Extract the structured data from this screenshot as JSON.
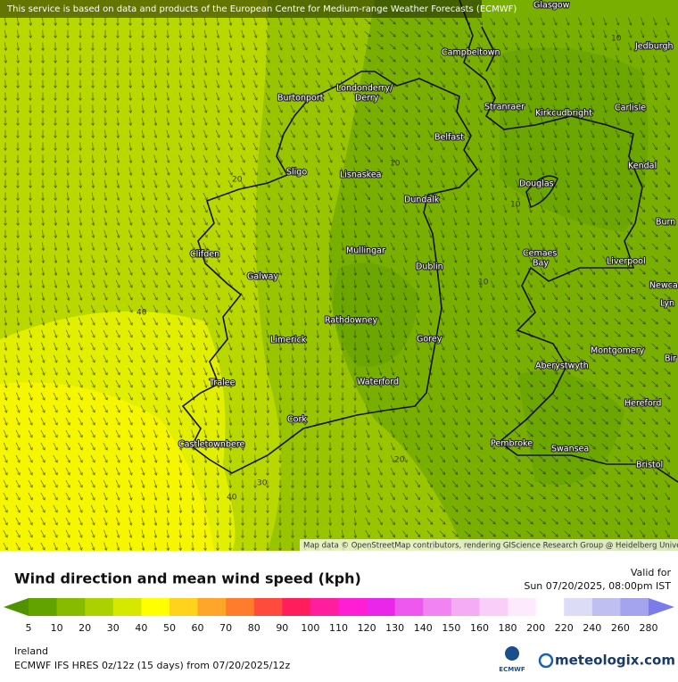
{
  "header": {
    "notice": "This service is based on data and products of the European Centre for Medium-range Weather Forecasts (ECMWF)"
  },
  "map": {
    "places": [
      "Glasgow",
      "Jedburgh",
      "Campbeltown",
      "Londonderry/",
      "Derry",
      "Burtonport",
      "Stranraer",
      "Kirkcudbright",
      "Carlisle",
      "Belfast",
      "Kendal",
      "Sligo",
      "Lisnaskea",
      "Douglas",
      "Dundalk",
      "Burn",
      "Clifden",
      "Mullingar",
      "Cemaes",
      "Bay",
      "Liverpool",
      "Dublin",
      "Galway",
      "Newca",
      "Lyn",
      "Rathdowney",
      "Limerick",
      "Gorey",
      "Montgomery",
      "Bir",
      "Aberystwyth",
      "Tralee",
      "Waterford",
      "Hereford",
      "Cork",
      "Pembroke",
      "Castletownbere",
      "Swansea",
      "Bristol"
    ],
    "contour_labels": [
      10,
      10,
      20,
      10,
      10,
      40,
      20,
      30,
      40
    ],
    "credit": "Map data © OpenStreetMap contributors, rendering GIScience Research Group @ Heidelberg University"
  },
  "footer": {
    "title": "Wind direction and mean wind speed (kph)",
    "valid_label": "Valid for",
    "valid_time": "Sun 07/20/2025, 08:00pm IST",
    "region": "Ireland",
    "model": "ECMWF IFS HRES 0z/12z (15 days) from  07/20/2025/12z",
    "ecmwf": "ECMWF",
    "brand": "meteologix.com"
  },
  "legend": {
    "ticks": [
      5,
      10,
      20,
      30,
      40,
      50,
      60,
      70,
      80,
      90,
      100,
      110,
      120,
      130,
      140,
      150,
      160,
      180,
      200,
      220,
      240,
      260,
      280
    ],
    "colors": [
      "#4f9400",
      "#62a300",
      "#86bb00",
      "#acd100",
      "#d6e800",
      "#ffff00",
      "#ffd21c",
      "#ffa62a",
      "#ff7c2c",
      "#ff4b3c",
      "#ff1d5c",
      "#ff1e9e",
      "#ff1ed4",
      "#ea26ea",
      "#ee58ee",
      "#f283f2",
      "#f6abf6",
      "#f9cff9",
      "#fdeafd",
      "#ffffff",
      "#dcdcf6",
      "#bfbff1",
      "#a3a3ee",
      "#7b7be9"
    ]
  }
}
